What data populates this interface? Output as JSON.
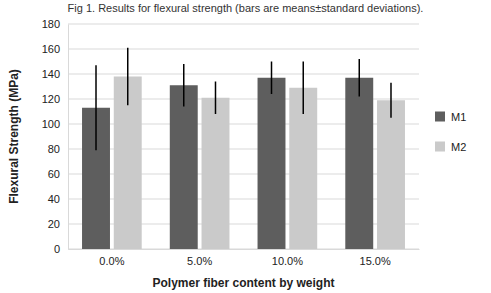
{
  "chart_data": {
    "type": "bar",
    "title": "Fig 1. Results for flexural strength (bars are means±standard deviations).",
    "x_label": "Polymer fiber content by weight",
    "y_label": "Flexural Strength (MPa)",
    "categories": [
      "0.0%",
      "5.0%",
      "10.0%",
      "15.0%"
    ],
    "series": [
      {
        "name": "M1",
        "color": "#5e5e5e",
        "values": [
          113,
          131,
          137,
          137
        ],
        "errors": [
          34,
          17,
          13,
          15
        ]
      },
      {
        "name": "M2",
        "color": "#cacaca",
        "values": [
          138,
          121,
          129,
          119
        ],
        "errors": [
          23,
          13,
          21,
          14
        ]
      }
    ],
    "ylim": [
      0,
      180
    ],
    "yticks": [
      0,
      20,
      40,
      60,
      80,
      100,
      120,
      140,
      160,
      180
    ],
    "grid": true,
    "legend": "right"
  }
}
